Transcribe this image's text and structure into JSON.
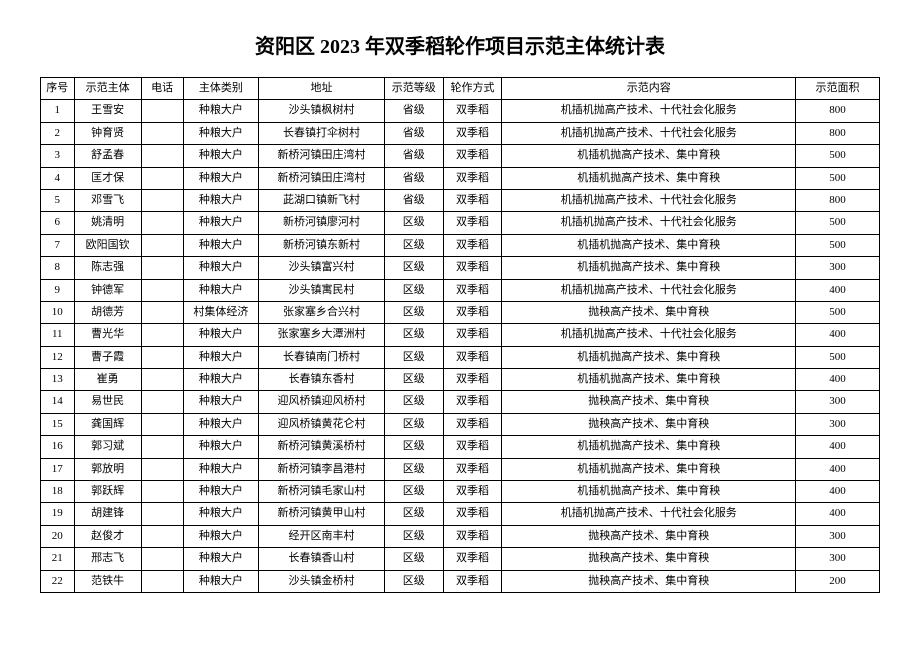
{
  "title": "资阳区 2023 年双季稻轮作项目示范主体统计表",
  "columns": [
    "序号",
    "示范主体",
    "电话",
    "主体类别",
    "地址",
    "示范等级",
    "轮作方式",
    "示范内容",
    "示范面积"
  ],
  "rows": [
    [
      "1",
      "王雪安",
      "",
      "种粮大户",
      "沙头镇枫树村",
      "省级",
      "双季稻",
      "机插机抛高产技术、十代社会化服务",
      "800"
    ],
    [
      "2",
      "钟育贤",
      "",
      "种粮大户",
      "长春镇打伞树村",
      "省级",
      "双季稻",
      "机插机抛高产技术、十代社会化服务",
      "800"
    ],
    [
      "3",
      "舒孟春",
      "",
      "种粮大户",
      "新桥河镇田庄湾村",
      "省级",
      "双季稻",
      "机插机抛高产技术、集中育秧",
      "500"
    ],
    [
      "4",
      "匡才保",
      "",
      "种粮大户",
      "新桥河镇田庄湾村",
      "省级",
      "双季稻",
      "机插机抛高产技术、集中育秧",
      "500"
    ],
    [
      "5",
      "邓雪飞",
      "",
      "种粮大户",
      "茈湖口镇新飞村",
      "省级",
      "双季稻",
      "机插机抛高产技术、十代社会化服务",
      "800"
    ],
    [
      "6",
      "姚清明",
      "",
      "种粮大户",
      "新桥河镇廖河村",
      "区级",
      "双季稻",
      "机插机抛高产技术、十代社会化服务",
      "500"
    ],
    [
      "7",
      "欧阳国钦",
      "",
      "种粮大户",
      "新桥河镇东新村",
      "区级",
      "双季稻",
      "机插机抛高产技术、集中育秧",
      "500"
    ],
    [
      "8",
      "陈志强",
      "",
      "种粮大户",
      "沙头镇富兴村",
      "区级",
      "双季稻",
      "机插机抛高产技术、集中育秧",
      "300"
    ],
    [
      "9",
      "钟德军",
      "",
      "种粮大户",
      "沙头镇寓民村",
      "区级",
      "双季稻",
      "机插机抛高产技术、十代社会化服务",
      "400"
    ],
    [
      "10",
      "胡德芳",
      "",
      "村集体经济",
      "张家塞乡合兴村",
      "区级",
      "双季稻",
      "抛秧高产技术、集中育秧",
      "500"
    ],
    [
      "11",
      "曹光华",
      "",
      "种粮大户",
      "张家塞乡大潭洲村",
      "区级",
      "双季稻",
      "机插机抛高产技术、十代社会化服务",
      "400"
    ],
    [
      "12",
      "曹子霞",
      "",
      "种粮大户",
      "长春镇南门桥村",
      "区级",
      "双季稻",
      "机插机抛高产技术、集中育秧",
      "500"
    ],
    [
      "13",
      "崔勇",
      "",
      "种粮大户",
      "长春镇东香村",
      "区级",
      "双季稻",
      "机插机抛高产技术、集中育秧",
      "400"
    ],
    [
      "14",
      "易世民",
      "",
      "种粮大户",
      "迎风桥镇迎风桥村",
      "区级",
      "双季稻",
      "抛秧高产技术、集中育秧",
      "300"
    ],
    [
      "15",
      "龚国辉",
      "",
      "种粮大户",
      "迎风桥镇黄花仑村",
      "区级",
      "双季稻",
      "抛秧高产技术、集中育秧",
      "300"
    ],
    [
      "16",
      "郭习斌",
      "",
      "种粮大户",
      "新桥河镇黄溪桥村",
      "区级",
      "双季稻",
      "机插机抛高产技术、集中育秧",
      "400"
    ],
    [
      "17",
      "郭放明",
      "",
      "种粮大户",
      "新桥河镇李昌港村",
      "区级",
      "双季稻",
      "机插机抛高产技术、集中育秧",
      "400"
    ],
    [
      "18",
      "郭跃辉",
      "",
      "种粮大户",
      "新桥河镇毛家山村",
      "区级",
      "双季稻",
      "机插机抛高产技术、集中育秧",
      "400"
    ],
    [
      "19",
      "胡建锋",
      "",
      "种粮大户",
      "新桥河镇黄甲山村",
      "区级",
      "双季稻",
      "机插机抛高产技术、十代社会化服务",
      "400"
    ],
    [
      "20",
      "赵俊才",
      "",
      "种粮大户",
      "经开区南丰村",
      "区级",
      "双季稻",
      "抛秧高产技术、集中育秧",
      "300"
    ],
    [
      "21",
      "邢志飞",
      "",
      "种粮大户",
      "长春镇香山村",
      "区级",
      "双季稻",
      "抛秧高产技术、集中育秧",
      "300"
    ],
    [
      "22",
      "范铁牛",
      "",
      "种粮大户",
      "沙头镇金桥村",
      "区级",
      "双季稻",
      "抛秧高产技术、集中育秧",
      "200"
    ]
  ]
}
